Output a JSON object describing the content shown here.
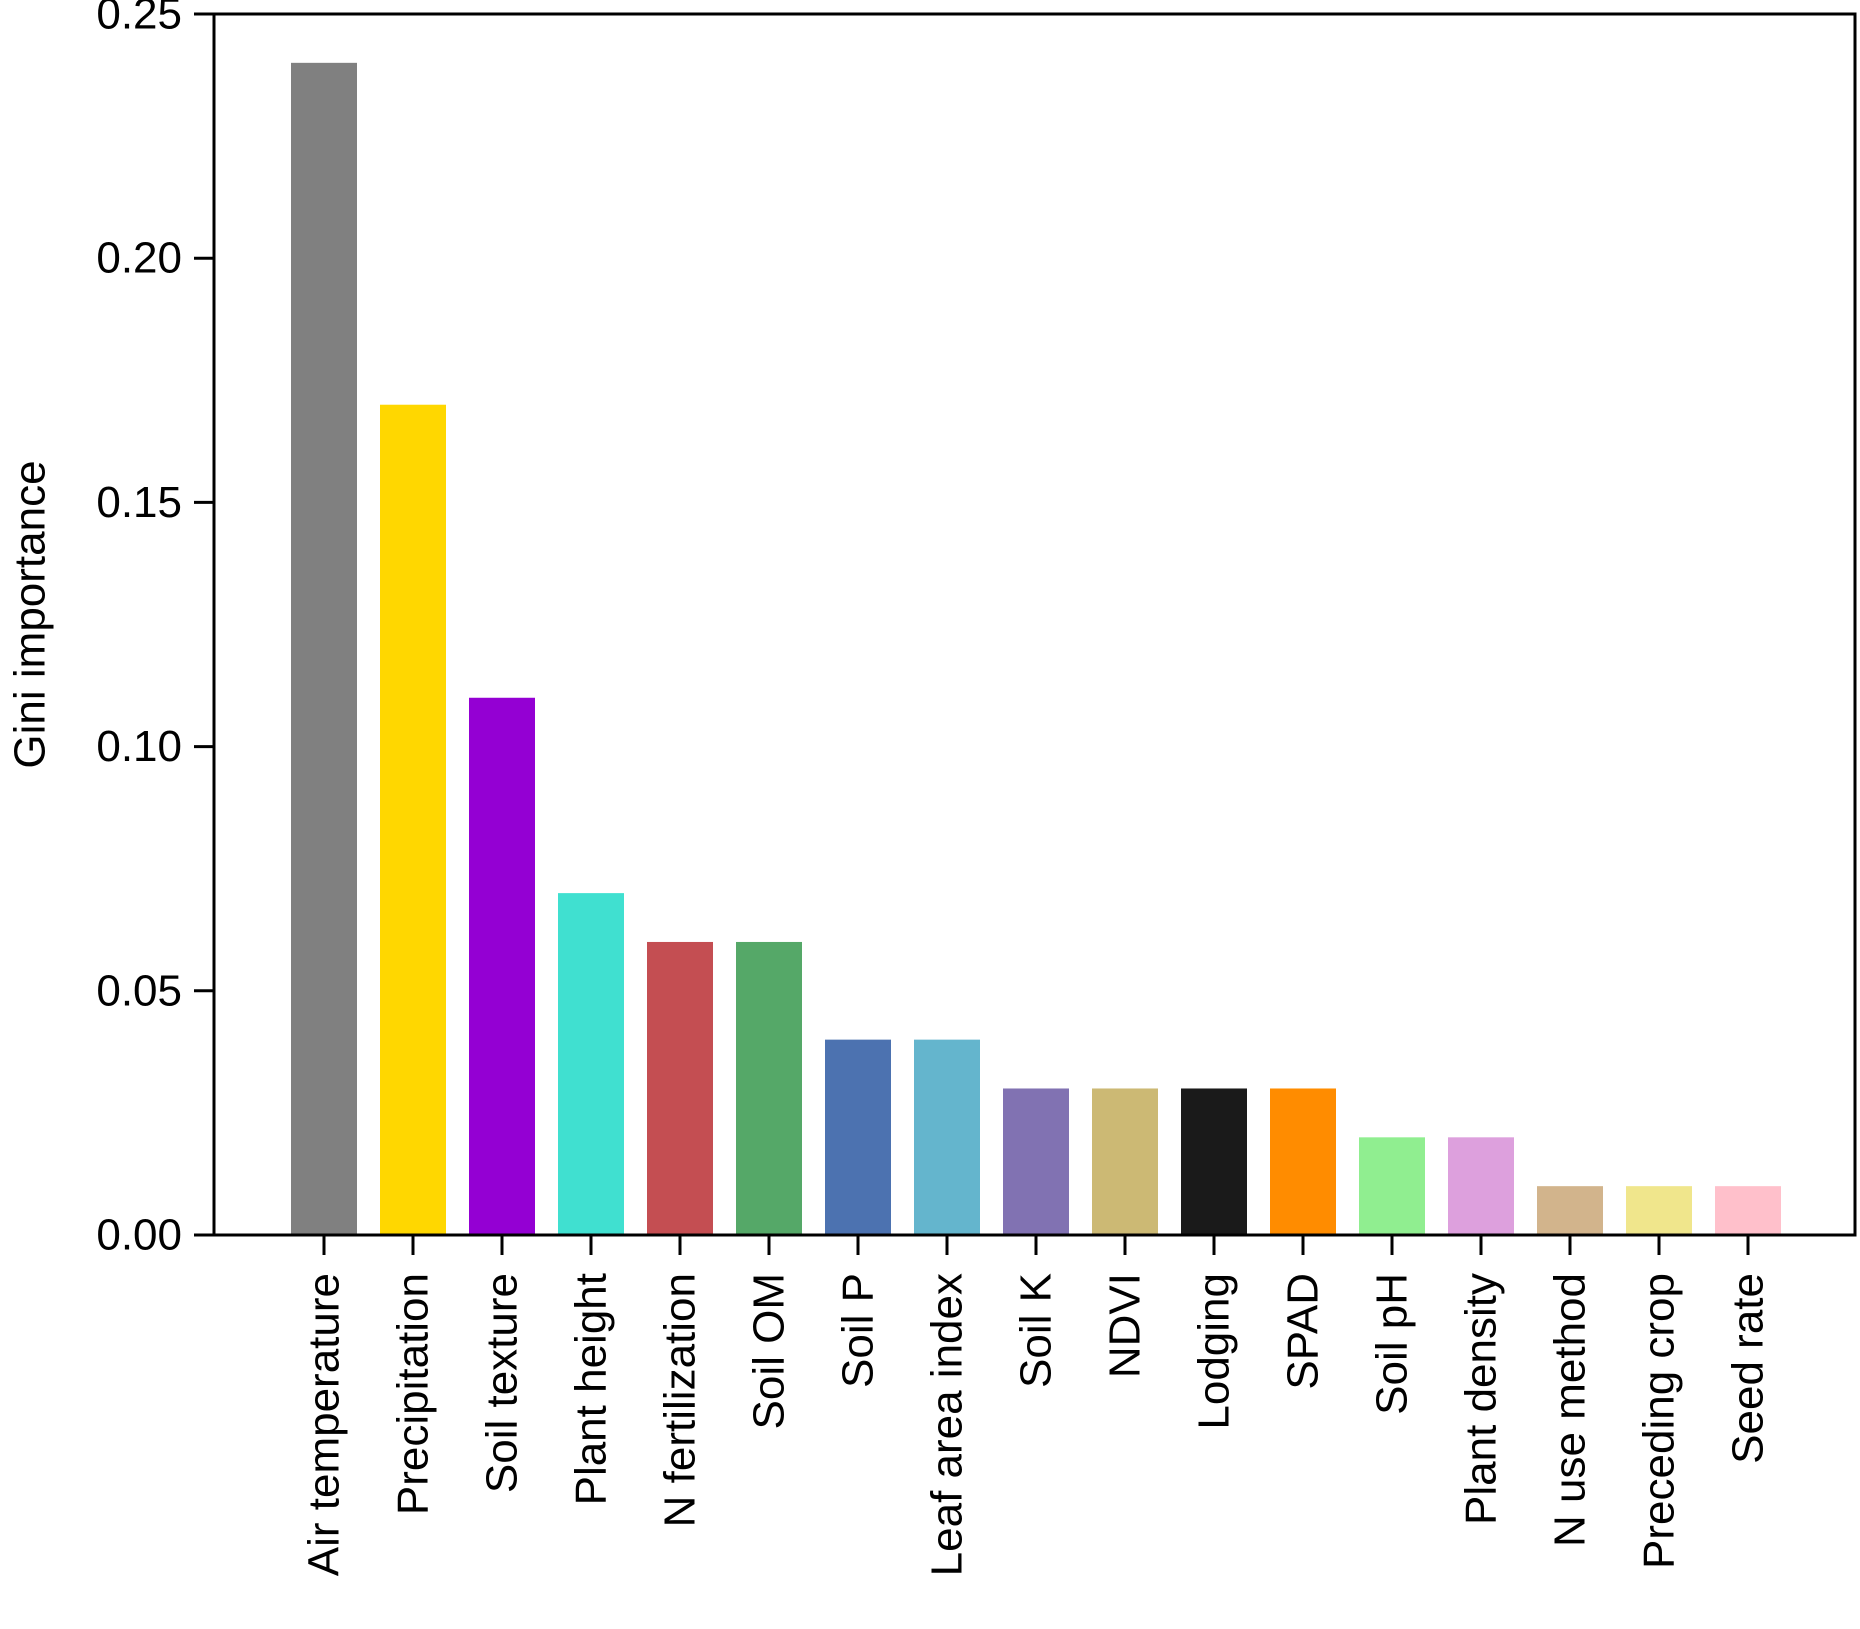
{
  "chart_data": {
    "type": "bar",
    "title": "",
    "xlabel": "",
    "ylabel": "Gini importance",
    "ylim": [
      0,
      0.25
    ],
    "yticks": [
      "0.00",
      "0.05",
      "0.10",
      "0.15",
      "0.20",
      "0.25"
    ],
    "grid": false,
    "legend": "none",
    "categories": [
      "Air temperature",
      "Precipitation",
      "Soil texture",
      "Plant height",
      "N fertilization",
      "Soil OM",
      "Soil P",
      "Leaf area index",
      "Soil K",
      "NDVI",
      "Lodging",
      "SPAD",
      "Soil pH",
      "Plant density",
      "N use method",
      "Preceding crop",
      "Seed rate"
    ],
    "values": [
      0.24,
      0.17,
      0.11,
      0.07,
      0.06,
      0.06,
      0.04,
      0.04,
      0.03,
      0.03,
      0.03,
      0.03,
      0.02,
      0.02,
      0.01,
      0.01,
      0.01
    ],
    "colors": [
      "#808080",
      "#FFD700",
      "#9400D3",
      "#40E0D0",
      "#C44E52",
      "#55A868",
      "#4C72B0",
      "#64B5CD",
      "#8172B2",
      "#CCB974",
      "#1A1A1A",
      "#FF8C00",
      "#90EE90",
      "#DDA0DD",
      "#D2B48C",
      "#F0E68C",
      "#FFC0CB"
    ]
  }
}
